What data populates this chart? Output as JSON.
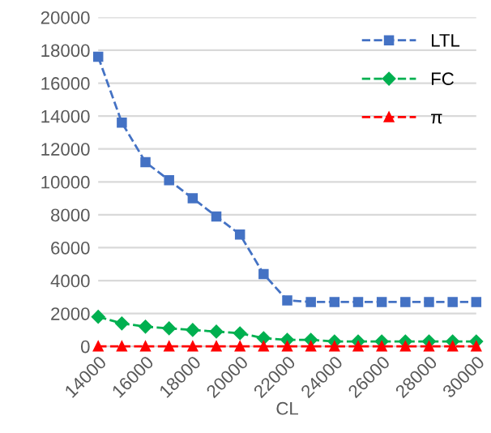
{
  "chart_data": {
    "type": "line",
    "xlabel": "CL",
    "x": [
      14000,
      15000,
      16000,
      17000,
      18000,
      19000,
      20000,
      21000,
      22000,
      23000,
      24000,
      25000,
      26000,
      27000,
      28000,
      29000,
      30000
    ],
    "xlim": [
      14000,
      30000
    ],
    "xticks": [
      14000,
      16000,
      18000,
      20000,
      22000,
      24000,
      26000,
      28000,
      30000
    ],
    "ylim": [
      0,
      20000
    ],
    "yticks": [
      0,
      2000,
      4000,
      6000,
      8000,
      10000,
      12000,
      14000,
      16000,
      18000,
      20000
    ],
    "grid": "y",
    "legend": "top right",
    "line_style": "dashed",
    "series": [
      {
        "name": "LTL",
        "color": "#4472c4",
        "marker": "square",
        "values": [
          17600,
          13600,
          11200,
          10100,
          9000,
          7900,
          6800,
          4400,
          2800,
          2700,
          2700,
          2700,
          2700,
          2700,
          2700,
          2700,
          2700
        ]
      },
      {
        "name": "FC",
        "color": "#00b050",
        "marker": "diamond",
        "values": [
          1800,
          1400,
          1200,
          1100,
          1000,
          900,
          800,
          500,
          400,
          400,
          300,
          300,
          300,
          300,
          300,
          300,
          300
        ]
      },
      {
        "name": "π",
        "color": "#ff0000",
        "marker": "triangle",
        "values": [
          0,
          0,
          0,
          0,
          0,
          0,
          0,
          0,
          0,
          0,
          0,
          0,
          0,
          0,
          0,
          0,
          0
        ]
      }
    ]
  }
}
